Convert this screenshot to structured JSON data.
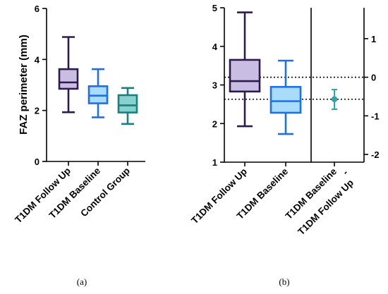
{
  "chart_data": [
    {
      "panel_label": "(a)",
      "type": "box",
      "ylabel": "FAZ perimeter (mm)",
      "ylim": [
        0,
        6
      ],
      "yticks": [
        0,
        2,
        4,
        6
      ],
      "categories": [
        "T1DM Follow Up",
        "T1DM Baseline",
        "Control Group"
      ],
      "boxes": [
        {
          "min": 1.93,
          "q1": 2.85,
          "median": 3.1,
          "q3": 3.62,
          "max": 4.88,
          "stroke": "#2d1b4e",
          "fill": "#c9bde3"
        },
        {
          "min": 1.73,
          "q1": 2.28,
          "median": 2.58,
          "q3": 2.95,
          "max": 3.62,
          "stroke": "#1e6fe8",
          "fill": "#a8dcfa"
        },
        {
          "min": 1.47,
          "q1": 1.92,
          "median": 2.2,
          "q3": 2.6,
          "max": 2.88,
          "stroke": "#1a7f7f",
          "fill": "#8ad0cd"
        }
      ]
    },
    {
      "panel_label": "(b)",
      "type": "estimation",
      "ylim": [
        1,
        5
      ],
      "yticks": [
        1,
        2,
        3,
        4,
        5
      ],
      "y2lim": [
        -2.2,
        1.8
      ],
      "y2ticks": [
        -2,
        -1,
        0,
        1
      ],
      "categories": [
        "T1DM Follow Up",
        "T1DM Baseline",
        "T1DM Baseline\n-\nT1DM Follow Up"
      ],
      "boxes": [
        {
          "min": 1.93,
          "q1": 2.83,
          "median": 3.1,
          "q3": 3.65,
          "max": 4.88,
          "stroke": "#2d1b4e",
          "fill": "#c9bde3"
        },
        {
          "min": 1.73,
          "q1": 2.28,
          "median": 2.58,
          "q3": 2.95,
          "max": 3.63,
          "stroke": "#1e6fe8",
          "fill": "#a8dcfa"
        }
      ],
      "difference": {
        "estimate": -0.57,
        "ci_low": -0.83,
        "ci_high": -0.32,
        "color": "#2aa8a8"
      },
      "reference_lines": [
        0,
        -0.57
      ]
    }
  ]
}
